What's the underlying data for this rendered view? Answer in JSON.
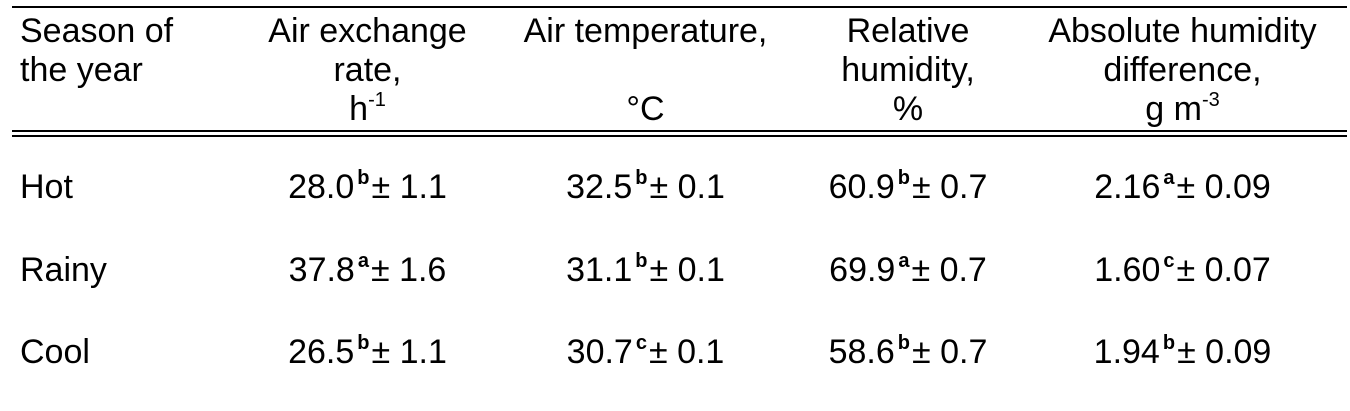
{
  "table": {
    "headers": {
      "season": {
        "line1": "Season of",
        "line2": "the year"
      },
      "air_exchange": {
        "line1": "Air exchange",
        "line2": "rate,",
        "line3": "h",
        "sup": "-1"
      },
      "air_temp": {
        "line1": "Air temperature,",
        "line3": "°C"
      },
      "rel_humidity": {
        "line1": "Relative",
        "line2": "humidity,",
        "line3": "%"
      },
      "abs_humidity": {
        "line1": "Absolute humidity",
        "line2": "difference,",
        "line3": "g m",
        "sup": "-3"
      }
    },
    "rows": [
      {
        "season": "Hot",
        "air_exchange": {
          "value": "28.0",
          "letter": "b",
          "sd": "± 1.1"
        },
        "air_temp": {
          "value": "32.5",
          "letter": "b",
          "sd": "± 0.1"
        },
        "rel_humidity": {
          "value": "60.9",
          "letter": "b",
          "sd": "± 0.7"
        },
        "abs_humidity": {
          "value": "2.16",
          "letter": "a",
          "sd": "± 0.09"
        }
      },
      {
        "season": "Rainy",
        "air_exchange": {
          "value": "37.8",
          "letter": "a",
          "sd": "± 1.6"
        },
        "air_temp": {
          "value": "31.1",
          "letter": "b",
          "sd": "± 0.1"
        },
        "rel_humidity": {
          "value": "69.9",
          "letter": "a",
          "sd": "± 0.7"
        },
        "abs_humidity": {
          "value": "1.60",
          "letter": "c",
          "sd": "± 0.07"
        }
      },
      {
        "season": "Cool",
        "air_exchange": {
          "value": "26.5",
          "letter": "b",
          "sd": "± 1.1"
        },
        "air_temp": {
          "value": "30.7",
          "letter": "c",
          "sd": "± 0.1"
        },
        "rel_humidity": {
          "value": "58.6",
          "letter": "b",
          "sd": "± 0.7"
        },
        "abs_humidity": {
          "value": "1.94",
          "letter": "b",
          "sd": "± 0.09"
        }
      }
    ]
  }
}
